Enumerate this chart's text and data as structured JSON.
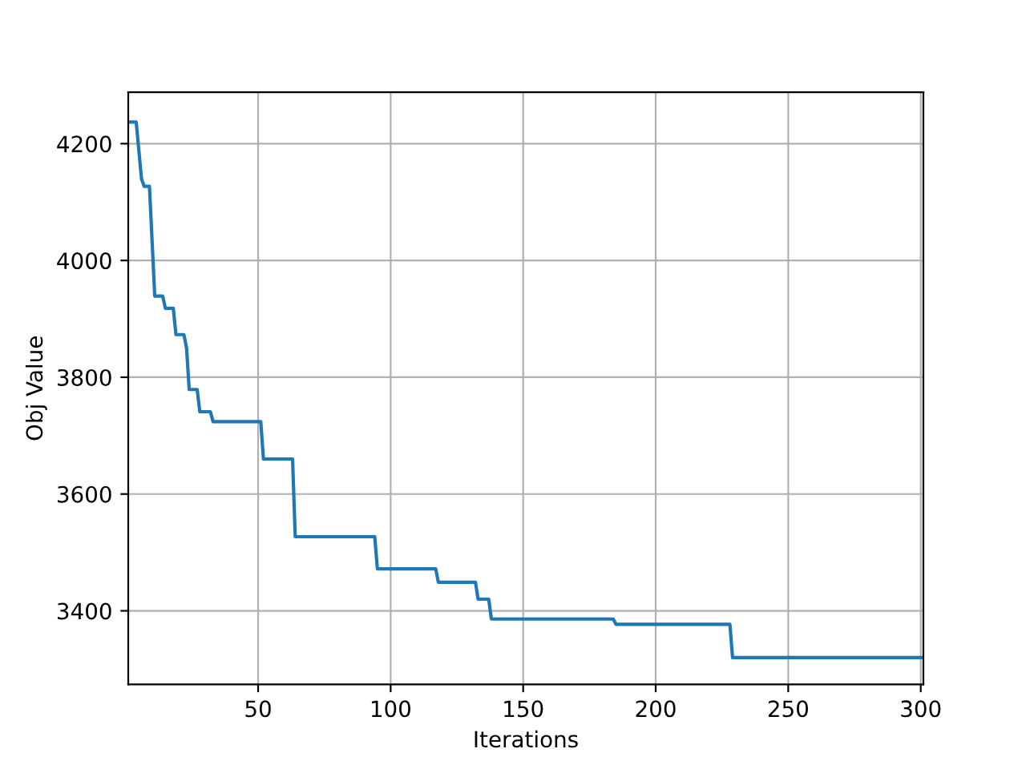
{
  "chart_data": {
    "type": "line",
    "xlabel": "Iterations",
    "ylabel": "Obj Value",
    "x": [
      1,
      4,
      6,
      7,
      9,
      11,
      14,
      15,
      18,
      19,
      22,
      23,
      24,
      27,
      28,
      32,
      33,
      51,
      52,
      63,
      64,
      94,
      95,
      117,
      118,
      132,
      133,
      137,
      138,
      184,
      185,
      228,
      229,
      301
    ],
    "series": [
      {
        "color": "#1f77b4",
        "values": [
          4237,
          4237,
          4140,
          4127,
          4127,
          3939,
          3939,
          3918,
          3918,
          3873,
          3873,
          3850,
          3779,
          3779,
          3741,
          3741,
          3724,
          3724,
          3660,
          3660,
          3527,
          3527,
          3472,
          3472,
          3449,
          3449,
          3420,
          3420,
          3386,
          3386,
          3377,
          3377,
          3320,
          3320
        ]
      }
    ],
    "xlim": [
      1,
      301
    ],
    "ylim": [
      3274,
      4288
    ],
    "xticks": [
      50,
      100,
      150,
      200,
      250,
      300
    ],
    "yticks": [
      3400,
      3600,
      3800,
      4000,
      4200
    ],
    "grid": true
  }
}
